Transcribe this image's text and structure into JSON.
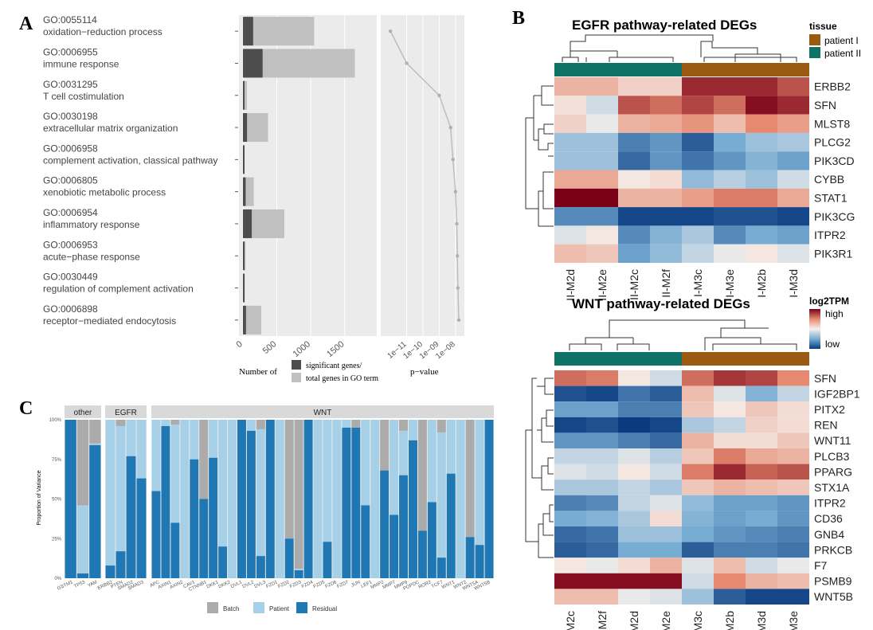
{
  "panel_labels": {
    "a": "A",
    "b": "B",
    "c": "C"
  },
  "chart_data": [
    {
      "id": "go_enrichment",
      "type": "bar",
      "terms": [
        {
          "id": "GO:0055114",
          "name": "oxidation−reduction process",
          "significant": 150,
          "total": 1050,
          "pvalue": 1e-12
        },
        {
          "id": "GO:0006955",
          "name": "immune response",
          "significant": 290,
          "total": 1650,
          "pvalue": 1e-11
        },
        {
          "id": "GO:0031295",
          "name": "T cell costimulation",
          "significant": 20,
          "total": 60,
          "pvalue": 1e-09
        },
        {
          "id": "GO:0030198",
          "name": "extracellular matrix organization",
          "significant": 60,
          "total": 370,
          "pvalue": 5e-09
        },
        {
          "id": "GO:0006958",
          "name": "complement activation, classical pathway",
          "significant": 12,
          "total": 25,
          "pvalue": 7e-09
        },
        {
          "id": "GO:0006805",
          "name": "xenobiotic metabolic process",
          "significant": 40,
          "total": 160,
          "pvalue": 1e-08
        },
        {
          "id": "GO:0006954",
          "name": "inflammatory response",
          "significant": 130,
          "total": 610,
          "pvalue": 1.2e-08
        },
        {
          "id": "GO:0006953",
          "name": "acute−phase response",
          "significant": 12,
          "total": 40,
          "pvalue": 1.3e-08
        },
        {
          "id": "GO:0030449",
          "name": "regulation of complement activation",
          "significant": 10,
          "total": 28,
          "pvalue": 1.4e-08
        },
        {
          "id": "GO:0006898",
          "name": "receptor−mediated endocytosis",
          "significant": 45,
          "total": 270,
          "pvalue": 1.6e-08
        }
      ],
      "count_ticks": [
        "0",
        "500",
        "1000",
        "1500"
      ],
      "count_max": 1950,
      "pvalue_ticks": [
        "1e−11",
        "1e−10",
        "1e−09",
        "1e−08"
      ],
      "pvalue_range_log10": [
        -12.4,
        -7.6
      ],
      "xlabel_left": "Number of",
      "xlabel_right": "p−value",
      "legend": [
        "significant genes/",
        "total genes in GO term"
      ],
      "colors": {
        "significant": "#4d4d4d",
        "total": "#c0c0c0",
        "panel_bg": "#ebebeb",
        "line": "#bdbdbd"
      }
    },
    {
      "id": "egfr_heatmap",
      "type": "heatmap",
      "title": "EGFR pathway-related DEGs",
      "columns": [
        "II-M2d",
        "II-M2e",
        "II-M2c",
        "II-M2f",
        "I-M3c",
        "I-M3e",
        "I-M2b",
        "I-M3d"
      ],
      "rows": [
        "ERBB2",
        "SFN",
        "MLST8",
        "PLCG2",
        "PIK3CD",
        "CYBB",
        "STAT1",
        "PIK3CG",
        "ITPR2",
        "PIK3R1"
      ],
      "values": [
        [
          0.3,
          0.3,
          0.15,
          0.15,
          0.85,
          0.85,
          0.85,
          0.7
        ],
        [
          0.08,
          -0.15,
          0.7,
          0.6,
          0.75,
          0.6,
          0.95,
          0.85
        ],
        [
          0.15,
          -0.05,
          0.3,
          0.35,
          0.45,
          0.25,
          0.5,
          0.4
        ],
        [
          -0.35,
          -0.35,
          -0.7,
          -0.6,
          -0.85,
          -0.5,
          -0.35,
          -0.3
        ],
        [
          -0.35,
          -0.35,
          -0.8,
          -0.6,
          -0.75,
          -0.6,
          -0.45,
          -0.55
        ],
        [
          0.35,
          0.35,
          0.05,
          0.1,
          -0.4,
          -0.25,
          -0.35,
          -0.15
        ],
        [
          1.0,
          1.0,
          0.3,
          0.3,
          0.4,
          0.55,
          0.55,
          0.35
        ],
        [
          -0.65,
          -0.65,
          -0.95,
          -0.95,
          -0.95,
          -0.9,
          -0.9,
          -0.95
        ],
        [
          -0.1,
          0.05,
          -0.65,
          -0.45,
          -0.3,
          -0.65,
          -0.5,
          -0.55
        ],
        [
          0.25,
          0.2,
          -0.55,
          -0.4,
          -0.2,
          -0.05,
          0.05,
          -0.1
        ]
      ],
      "column_groups": [
        "patient II",
        "patient II",
        "patient II",
        "patient II",
        "patient I",
        "patient I",
        "patient I",
        "patient I"
      ],
      "legend_title": "tissue",
      "legend": [
        {
          "label": "patient I",
          "color": "#9a5a12"
        },
        {
          "label": "patient II",
          "color": "#0e7366"
        }
      ]
    },
    {
      "id": "wnt_heatmap",
      "type": "heatmap",
      "title": "WNT pathway-related DEGs",
      "columns": [
        "II-M2c",
        "II-M2f",
        "II-M2d",
        "II-M2e",
        "I-M3c",
        "I-M2b",
        "I-M3d",
        "I-M3e"
      ],
      "rows": [
        "SFN",
        "IGF2BP1",
        "PITX2",
        "REN",
        "WNT11",
        "PLCB3",
        "PPARG",
        "STX1A",
        "ITPR2",
        "CD36",
        "GNB4",
        "PRKCB",
        "F7",
        "PSMB9",
        "WNT5B"
      ],
      "values": [
        [
          0.6,
          0.55,
          0.05,
          -0.15,
          0.6,
          0.8,
          0.75,
          0.5
        ],
        [
          -0.9,
          -0.95,
          -0.75,
          -0.85,
          0.25,
          -0.1,
          -0.45,
          -0.2
        ],
        [
          -0.55,
          -0.55,
          -0.7,
          -0.7,
          0.2,
          0.05,
          0.2,
          0.1
        ],
        [
          -0.95,
          -0.9,
          -1.0,
          -0.95,
          -0.3,
          -0.2,
          0.15,
          0.1
        ],
        [
          -0.6,
          -0.6,
          -0.7,
          -0.8,
          0.3,
          0.1,
          0.1,
          0.2
        ],
        [
          -0.2,
          -0.2,
          -0.1,
          -0.25,
          0.2,
          0.55,
          0.35,
          0.3
        ],
        [
          -0.1,
          -0.15,
          0.05,
          -0.15,
          0.55,
          0.85,
          0.65,
          0.7
        ],
        [
          -0.3,
          -0.3,
          -0.2,
          -0.3,
          0.2,
          0.3,
          0.25,
          0.2
        ],
        [
          -0.7,
          -0.65,
          -0.2,
          -0.1,
          -0.4,
          -0.55,
          -0.55,
          -0.6
        ],
        [
          -0.5,
          -0.45,
          -0.3,
          0.1,
          -0.45,
          -0.55,
          -0.5,
          -0.6
        ],
        [
          -0.8,
          -0.75,
          -0.35,
          -0.35,
          -0.5,
          -0.6,
          -0.65,
          -0.7
        ],
        [
          -0.85,
          -0.8,
          -0.5,
          -0.5,
          -0.85,
          -0.7,
          -0.7,
          -0.75
        ],
        [
          0.05,
          -0.05,
          0.1,
          0.3,
          -0.1,
          0.25,
          -0.15,
          -0.05
        ],
        [
          0.95,
          0.95,
          0.95,
          0.95,
          -0.15,
          0.5,
          0.3,
          0.25
        ],
        [
          0.25,
          0.25,
          -0.05,
          -0.1,
          -0.35,
          -0.85,
          -0.95,
          -0.95
        ]
      ],
      "column_groups": [
        "patient II",
        "patient II",
        "patient II",
        "patient II",
        "patient I",
        "patient I",
        "patient I",
        "patient I"
      ],
      "legend_title": "log2TPM",
      "legend_high": "high",
      "legend_low": "low"
    },
    {
      "id": "variance_partition",
      "type": "bar",
      "stacked": true,
      "ylabel": "Proportion of Variance",
      "yticks": [
        "0%",
        "25%",
        "50%",
        "75%",
        "100%"
      ],
      "series_names": [
        "Batch",
        "Patient",
        "Residual"
      ],
      "colors": {
        "Batch": "#ababab",
        "Patient": "#a6d0e8",
        "Residual": "#1f78b4"
      },
      "groups": [
        {
          "label": "other",
          "genes": [
            {
              "gene": "GSTM1",
              "batch": 0,
              "patient": 0,
              "residual": 100
            },
            {
              "gene": "TP53",
              "batch": 54,
              "patient": 43,
              "residual": 3
            },
            {
              "gene": "YAM",
              "batch": 15,
              "patient": 1,
              "residual": 84
            }
          ]
        },
        {
          "label": "EGFR",
          "genes": [
            {
              "gene": "ERBB2",
              "batch": 0,
              "patient": 92,
              "residual": 8
            },
            {
              "gene": "PTEN",
              "batch": 4,
              "patient": 79,
              "residual": 17
            },
            {
              "gene": "SMAD2",
              "batch": 0,
              "patient": 23,
              "residual": 77
            },
            {
              "gene": "SMAD3",
              "batch": 0,
              "patient": 37,
              "residual": 63
            }
          ]
        },
        {
          "label": "WNT",
          "genes": [
            {
              "gene": "APC",
              "batch": 0,
              "patient": 45,
              "residual": 55
            },
            {
              "gene": "AXIN1",
              "batch": 0,
              "patient": 4,
              "residual": 96
            },
            {
              "gene": "AXIN2",
              "batch": 3,
              "patient": 62,
              "residual": 35
            },
            {
              "gene": "CAV1",
              "batch": 0,
              "patient": 100,
              "residual": 0
            },
            {
              "gene": "CTNNB1",
              "batch": 0,
              "patient": 25,
              "residual": 75
            },
            {
              "gene": "CTNNB1",
              "batch": 50,
              "patient": 0,
              "residual": 50
            },
            {
              "gene": "DKK1",
              "batch": 0,
              "patient": 24,
              "residual": 76
            },
            {
              "gene": "DKK2",
              "batch": 0,
              "patient": 80,
              "residual": 20
            },
            {
              "gene": "DVL1",
              "batch": 0,
              "patient": 100,
              "residual": 0
            },
            {
              "gene": "DVL2",
              "batch": 0,
              "patient": 0,
              "residual": 100
            },
            {
              "gene": "DVL3",
              "batch": 0,
              "patient": 7,
              "residual": 93
            },
            {
              "gene": "DVL3",
              "batch": 6,
              "patient": 80,
              "residual": 14
            },
            {
              "gene": "FZD1",
              "batch": 0,
              "patient": 0,
              "residual": 100
            },
            {
              "gene": "FZD2",
              "batch": 0,
              "patient": 100,
              "residual": 0
            },
            {
              "gene": "FZD2",
              "batch": 75,
              "patient": 0,
              "residual": 25
            },
            {
              "gene": "FZD3",
              "batch": 94,
              "patient": 1,
              "residual": 5
            },
            {
              "gene": "FZD4",
              "batch": 0,
              "patient": 0,
              "residual": 100
            },
            {
              "gene": "FZD5",
              "batch": 0,
              "patient": 100,
              "residual": 0
            },
            {
              "gene": "FZD6",
              "batch": 0,
              "patient": 77,
              "residual": 23
            },
            {
              "gene": "FZD6",
              "batch": 0,
              "patient": 100,
              "residual": 0
            },
            {
              "gene": "FZD7",
              "batch": 0,
              "patient": 5,
              "residual": 95
            },
            {
              "gene": "JUN",
              "batch": 5,
              "patient": 0,
              "residual": 95
            },
            {
              "gene": "LEF1",
              "batch": 0,
              "patient": 54,
              "residual": 46
            },
            {
              "gene": "MMP2",
              "batch": 0,
              "patient": 100,
              "residual": 0
            },
            {
              "gene": "MMP7",
              "batch": 32,
              "patient": 0,
              "residual": 68
            },
            {
              "gene": "MMP9",
              "batch": 0,
              "patient": 60,
              "residual": 40
            },
            {
              "gene": "POPDC",
              "batch": 7,
              "patient": 28,
              "residual": 65
            },
            {
              "gene": "ROR2",
              "batch": 0,
              "patient": 13,
              "residual": 87
            },
            {
              "gene": "TCF7",
              "batch": 70,
              "patient": 0,
              "residual": 30
            },
            {
              "gene": "WNT1",
              "batch": 0,
              "patient": 52,
              "residual": 48
            },
            {
              "gene": "WNT1",
              "batch": 8,
              "patient": 79,
              "residual": 13
            },
            {
              "gene": "WNT2",
              "batch": 0,
              "patient": 34,
              "residual": 66
            },
            {
              "gene": "WNT2",
              "batch": 0,
              "patient": 100,
              "residual": 0
            },
            {
              "gene": "WNT5A",
              "batch": 74,
              "patient": 0,
              "residual": 26
            },
            {
              "gene": "WNT5B",
              "batch": 0,
              "patient": 79,
              "residual": 21
            },
            {
              "gene": "WNT5B",
              "batch": 0,
              "patient": 0,
              "residual": 100
            }
          ]
        }
      ],
      "tick_labels": [
        "GSTM1",
        "TP53",
        "YAM",
        "ERBB2",
        "PTEN",
        "SMAD2",
        "SMAD3",
        "APC",
        "AXIN1",
        "AXIN2",
        "CAV1",
        "CTNNB1",
        "DKK1",
        "DKK2",
        "DVL1",
        "DVL2",
        "DVL3",
        "FZD1",
        "FZD2",
        "FZD3",
        "FZD4",
        "FZD5",
        "FZD6",
        "FZD7",
        "JUN",
        "LEF1",
        "MMP2",
        "MMP7",
        "MMP9",
        "POPDC",
        "ROR2",
        "TCF7",
        "WNT1",
        "WNT2",
        "WNT5A",
        "WNT5B"
      ]
    }
  ]
}
